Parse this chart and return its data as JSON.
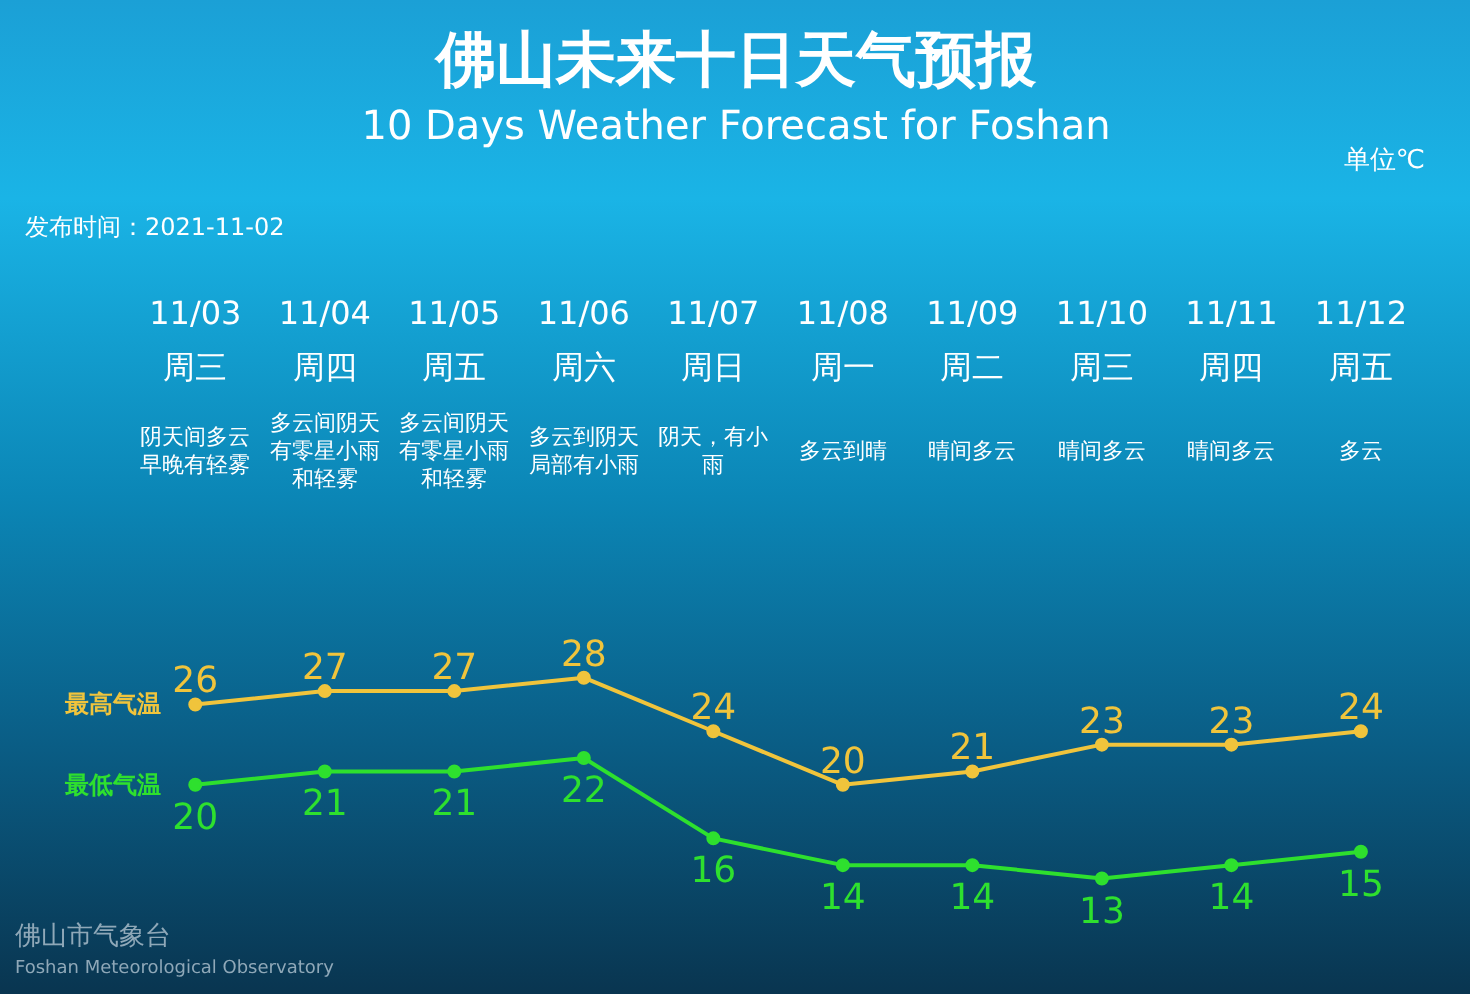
{
  "chart_data": {
    "type": "line",
    "title": "佛山未来十日天气预报",
    "subtitle": "10 Days Weather Forecast for Foshan",
    "categories": [
      "11/03\n周三",
      "11/04\n周四",
      "11/05\n周五",
      "11/06\n周六",
      "11/07\n周日",
      "11/08\n周一",
      "11/09\n周二",
      "11/10\n周三",
      "11/11\n周四",
      "11/12\n周五"
    ],
    "series": [
      {
        "name": "最高气温",
        "color": "#f0c43c",
        "values": [
          26,
          27,
          27,
          28,
          24,
          20,
          21,
          23,
          23,
          24
        ]
      },
      {
        "name": "最低气温",
        "color": "#2ee02e",
        "values": [
          20,
          21,
          21,
          22,
          16,
          14,
          14,
          13,
          14,
          15
        ]
      }
    ],
    "data_labels": true,
    "marker": "circle",
    "line_style": "solid",
    "annotations": [
      "单位℃",
      "发布时间：2021-11-02",
      "阴天间多云早晚有轻雾",
      "多云间阴天有零星小雨和轻雾",
      "多云间阴天有零星小雨和轻雾",
      "多云到阴天局部有小雨",
      "阴天，有小雨",
      "多云到晴",
      "晴间多云",
      "晴间多云",
      "晴间多云",
      "多云",
      "佛山市气象台",
      "Foshan Meteorological Observatory"
    ]
  }
}
